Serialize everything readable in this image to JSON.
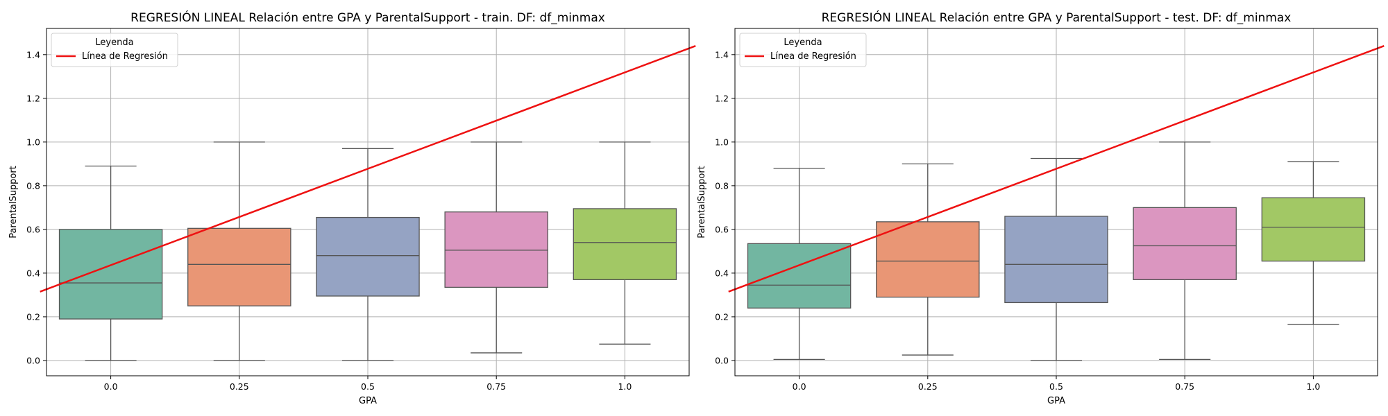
{
  "colors": {
    "boxes": [
      "#72b6a1",
      "#e99675",
      "#95a3c3",
      "#db96c0",
      "#a2c865"
    ],
    "box_edge": "#555555",
    "regression": "#ee1111",
    "grid": "#b0b0b0"
  },
  "chart_data": [
    {
      "type": "box",
      "title": "REGRESIÓN LINEAL Relación entre GPA y ParentalSupport - train. DF: df_minmax",
      "xlabel": "GPA",
      "ylabel": "ParentalSupport",
      "categories": [
        "0.0",
        "0.25",
        "0.5",
        "0.75",
        "1.0"
      ],
      "ylim": [
        -0.07,
        1.52
      ],
      "yticks": [
        "0.0",
        "0.2",
        "0.4",
        "0.6",
        "0.8",
        "1.0",
        "1.2",
        "1.4"
      ],
      "grid": true,
      "boxes": [
        {
          "min": 0.0,
          "q1": 0.19,
          "median": 0.355,
          "q3": 0.6,
          "max": 0.89
        },
        {
          "min": 0.0,
          "q1": 0.25,
          "median": 0.44,
          "q3": 0.605,
          "max": 1.0
        },
        {
          "min": 0.0,
          "q1": 0.295,
          "median": 0.48,
          "q3": 0.655,
          "max": 0.97
        },
        {
          "min": 0.035,
          "q1": 0.335,
          "median": 0.505,
          "q3": 0.68,
          "max": 1.0
        },
        {
          "min": 0.075,
          "q1": 0.37,
          "median": 0.54,
          "q3": 0.695,
          "max": 1.0
        }
      ],
      "regression_line": {
        "x_start": -0.55,
        "y_start": 0.315,
        "x_end": 4.55,
        "y_end": 1.44
      },
      "legend": {
        "title": "Leyenda",
        "entries": [
          "Línea de Regresión"
        ],
        "placement": "upper-left"
      }
    },
    {
      "type": "box",
      "title": "REGRESIÓN LINEAL Relación entre GPA y ParentalSupport - test. DF: df_minmax",
      "xlabel": "GPA",
      "ylabel": "ParentalSupport",
      "categories": [
        "0.0",
        "0.25",
        "0.5",
        "0.75",
        "1.0"
      ],
      "ylim": [
        -0.07,
        1.52
      ],
      "yticks": [
        "0.0",
        "0.2",
        "0.4",
        "0.6",
        "0.8",
        "1.0",
        "1.2",
        "1.4"
      ],
      "grid": true,
      "boxes": [
        {
          "min": 0.005,
          "q1": 0.24,
          "median": 0.345,
          "q3": 0.535,
          "max": 0.88
        },
        {
          "min": 0.025,
          "q1": 0.29,
          "median": 0.455,
          "q3": 0.635,
          "max": 0.9
        },
        {
          "min": 0.0,
          "q1": 0.265,
          "median": 0.44,
          "q3": 0.66,
          "max": 0.925
        },
        {
          "min": 0.005,
          "q1": 0.37,
          "median": 0.525,
          "q3": 0.7,
          "max": 1.0
        },
        {
          "min": 0.165,
          "q1": 0.455,
          "median": 0.61,
          "q3": 0.745,
          "max": 0.91
        }
      ],
      "regression_line": {
        "x_start": -0.55,
        "y_start": 0.315,
        "x_end": 4.55,
        "y_end": 1.44
      },
      "legend": {
        "title": "Leyenda",
        "entries": [
          "Línea de Regresión"
        ],
        "placement": "upper-left"
      }
    }
  ]
}
